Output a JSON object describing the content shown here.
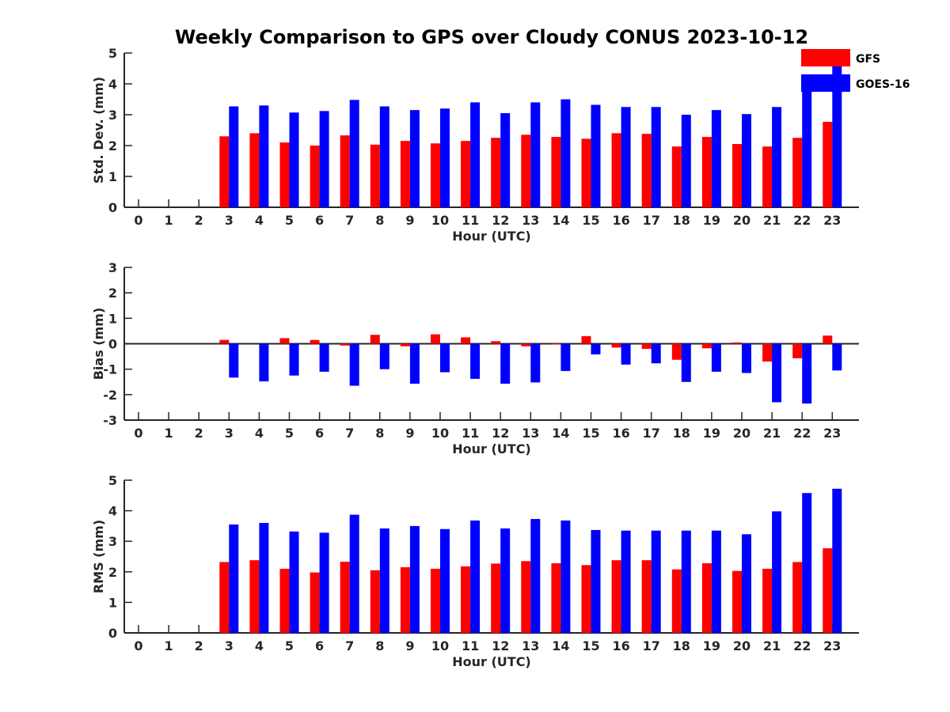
{
  "title": "Weekly Comparison to GPS over Cloudy CONUS 2023-10-12",
  "colors": {
    "gfs": "#ff0000",
    "goes": "#0000ff",
    "axis": "#262626"
  },
  "legend": {
    "placement": "top-right",
    "entries": [
      "GFS",
      "GOES-16"
    ]
  },
  "chart_data": [
    {
      "type": "bar",
      "ylabel": "Std. Dev. (mm)",
      "xlabel": "Hour (UTC)",
      "ylim": [
        0,
        5
      ],
      "yticks": [
        0,
        1,
        2,
        3,
        4,
        5
      ],
      "categories": [
        "0",
        "1",
        "2",
        "3",
        "4",
        "5",
        "6",
        "7",
        "8",
        "9",
        "10",
        "11",
        "12",
        "13",
        "14",
        "15",
        "16",
        "17",
        "18",
        "19",
        "20",
        "21",
        "22",
        "23"
      ],
      "series": [
        {
          "name": "GFS",
          "values": [
            0,
            0,
            0,
            2.3,
            2.4,
            2.1,
            2.0,
            2.33,
            2.03,
            2.15,
            2.07,
            2.15,
            2.25,
            2.35,
            2.28,
            2.22,
            2.4,
            2.38,
            1.97,
            2.28,
            2.05,
            1.97,
            2.25,
            2.77
          ]
        },
        {
          "name": "GOES-16",
          "values": [
            0,
            0,
            0,
            3.27,
            3.3,
            3.07,
            3.12,
            3.48,
            3.27,
            3.15,
            3.2,
            3.4,
            3.05,
            3.4,
            3.5,
            3.32,
            3.25,
            3.25,
            3.0,
            3.15,
            3.02,
            3.25,
            3.93,
            4.75
          ]
        }
      ]
    },
    {
      "type": "bar",
      "ylabel": "Bias (mm)",
      "xlabel": "Hour (UTC)",
      "ylim": [
        -3,
        3
      ],
      "yticks": [
        -3,
        -2,
        -1,
        0,
        1,
        2,
        3
      ],
      "categories": [
        "0",
        "1",
        "2",
        "3",
        "4",
        "5",
        "6",
        "7",
        "8",
        "9",
        "10",
        "11",
        "12",
        "13",
        "14",
        "15",
        "16",
        "17",
        "18",
        "19",
        "20",
        "21",
        "22",
        "23"
      ],
      "series": [
        {
          "name": "GFS",
          "values": [
            0,
            0,
            0,
            0.15,
            0,
            0.22,
            0.15,
            -0.07,
            0.35,
            -0.1,
            0.37,
            0.25,
            0.1,
            -0.1,
            -0.03,
            0.3,
            -0.15,
            -0.2,
            -0.63,
            -0.18,
            0.05,
            -0.7,
            -0.57,
            0.32
          ]
        },
        {
          "name": "GOES-16",
          "values": [
            0,
            0,
            0,
            -1.33,
            -1.48,
            -1.25,
            -1.1,
            -1.65,
            -1.0,
            -1.57,
            -1.12,
            -1.38,
            -1.57,
            -1.52,
            -1.07,
            -0.42,
            -0.82,
            -0.77,
            -1.5,
            -1.1,
            -1.15,
            -2.3,
            -2.35,
            -1.05
          ]
        }
      ]
    },
    {
      "type": "bar",
      "ylabel": "RMS (mm)",
      "xlabel": "Hour (UTC)",
      "ylim": [
        0,
        5
      ],
      "yticks": [
        0,
        1,
        2,
        3,
        4,
        5
      ],
      "categories": [
        "0",
        "1",
        "2",
        "3",
        "4",
        "5",
        "6",
        "7",
        "8",
        "9",
        "10",
        "11",
        "12",
        "13",
        "14",
        "15",
        "16",
        "17",
        "18",
        "19",
        "20",
        "21",
        "22",
        "23"
      ],
      "series": [
        {
          "name": "GFS",
          "values": [
            0,
            0,
            0,
            2.32,
            2.38,
            2.1,
            1.98,
            2.33,
            2.05,
            2.15,
            2.1,
            2.18,
            2.27,
            2.35,
            2.28,
            2.22,
            2.38,
            2.38,
            2.08,
            2.28,
            2.03,
            2.1,
            2.32,
            2.77
          ]
        },
        {
          "name": "GOES-16",
          "values": [
            0,
            0,
            0,
            3.55,
            3.6,
            3.32,
            3.28,
            3.87,
            3.42,
            3.5,
            3.4,
            3.68,
            3.42,
            3.73,
            3.68,
            3.37,
            3.35,
            3.35,
            3.35,
            3.35,
            3.23,
            3.98,
            4.58,
            4.72
          ]
        }
      ]
    }
  ]
}
